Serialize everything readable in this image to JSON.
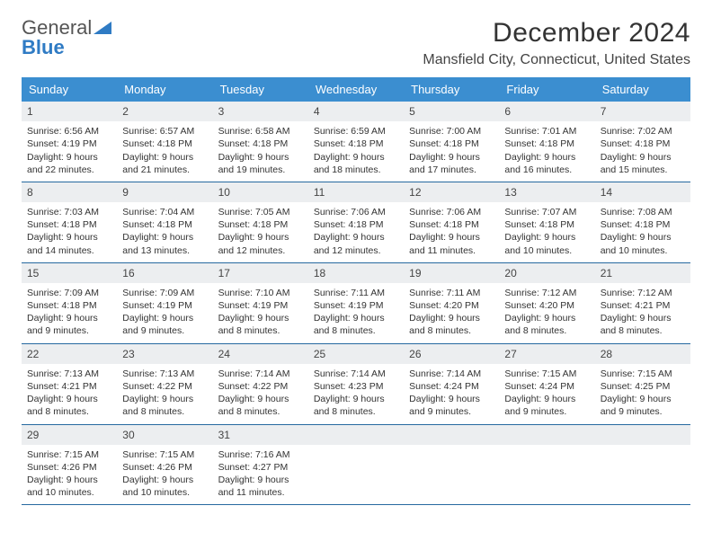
{
  "logo": {
    "text1": "General",
    "text2": "Blue"
  },
  "title": "December 2024",
  "location": "Mansfield City, Connecticut, United States",
  "weekdays": [
    "Sunday",
    "Monday",
    "Tuesday",
    "Wednesday",
    "Thursday",
    "Friday",
    "Saturday"
  ],
  "colors": {
    "header_bg": "#3b8ed0",
    "header_text": "#ffffff",
    "daynum_bg": "#eceef0",
    "week_border": "#2669a0",
    "text": "#333333",
    "logo_blue": "#2f7bc4"
  },
  "days": [
    {
      "n": "1",
      "sunrise": "6:56 AM",
      "sunset": "4:19 PM",
      "dh": "9",
      "dm": "22"
    },
    {
      "n": "2",
      "sunrise": "6:57 AM",
      "sunset": "4:18 PM",
      "dh": "9",
      "dm": "21"
    },
    {
      "n": "3",
      "sunrise": "6:58 AM",
      "sunset": "4:18 PM",
      "dh": "9",
      "dm": "19"
    },
    {
      "n": "4",
      "sunrise": "6:59 AM",
      "sunset": "4:18 PM",
      "dh": "9",
      "dm": "18"
    },
    {
      "n": "5",
      "sunrise": "7:00 AM",
      "sunset": "4:18 PM",
      "dh": "9",
      "dm": "17"
    },
    {
      "n": "6",
      "sunrise": "7:01 AM",
      "sunset": "4:18 PM",
      "dh": "9",
      "dm": "16"
    },
    {
      "n": "7",
      "sunrise": "7:02 AM",
      "sunset": "4:18 PM",
      "dh": "9",
      "dm": "15"
    },
    {
      "n": "8",
      "sunrise": "7:03 AM",
      "sunset": "4:18 PM",
      "dh": "9",
      "dm": "14"
    },
    {
      "n": "9",
      "sunrise": "7:04 AM",
      "sunset": "4:18 PM",
      "dh": "9",
      "dm": "13"
    },
    {
      "n": "10",
      "sunrise": "7:05 AM",
      "sunset": "4:18 PM",
      "dh": "9",
      "dm": "12"
    },
    {
      "n": "11",
      "sunrise": "7:06 AM",
      "sunset": "4:18 PM",
      "dh": "9",
      "dm": "12"
    },
    {
      "n": "12",
      "sunrise": "7:06 AM",
      "sunset": "4:18 PM",
      "dh": "9",
      "dm": "11"
    },
    {
      "n": "13",
      "sunrise": "7:07 AM",
      "sunset": "4:18 PM",
      "dh": "9",
      "dm": "10"
    },
    {
      "n": "14",
      "sunrise": "7:08 AM",
      "sunset": "4:18 PM",
      "dh": "9",
      "dm": "10"
    },
    {
      "n": "15",
      "sunrise": "7:09 AM",
      "sunset": "4:18 PM",
      "dh": "9",
      "dm": "9"
    },
    {
      "n": "16",
      "sunrise": "7:09 AM",
      "sunset": "4:19 PM",
      "dh": "9",
      "dm": "9"
    },
    {
      "n": "17",
      "sunrise": "7:10 AM",
      "sunset": "4:19 PM",
      "dh": "9",
      "dm": "8"
    },
    {
      "n": "18",
      "sunrise": "7:11 AM",
      "sunset": "4:19 PM",
      "dh": "9",
      "dm": "8"
    },
    {
      "n": "19",
      "sunrise": "7:11 AM",
      "sunset": "4:20 PM",
      "dh": "9",
      "dm": "8"
    },
    {
      "n": "20",
      "sunrise": "7:12 AM",
      "sunset": "4:20 PM",
      "dh": "9",
      "dm": "8"
    },
    {
      "n": "21",
      "sunrise": "7:12 AM",
      "sunset": "4:21 PM",
      "dh": "9",
      "dm": "8"
    },
    {
      "n": "22",
      "sunrise": "7:13 AM",
      "sunset": "4:21 PM",
      "dh": "9",
      "dm": "8"
    },
    {
      "n": "23",
      "sunrise": "7:13 AM",
      "sunset": "4:22 PM",
      "dh": "9",
      "dm": "8"
    },
    {
      "n": "24",
      "sunrise": "7:14 AM",
      "sunset": "4:22 PM",
      "dh": "9",
      "dm": "8"
    },
    {
      "n": "25",
      "sunrise": "7:14 AM",
      "sunset": "4:23 PM",
      "dh": "9",
      "dm": "8"
    },
    {
      "n": "26",
      "sunrise": "7:14 AM",
      "sunset": "4:24 PM",
      "dh": "9",
      "dm": "9"
    },
    {
      "n": "27",
      "sunrise": "7:15 AM",
      "sunset": "4:24 PM",
      "dh": "9",
      "dm": "9"
    },
    {
      "n": "28",
      "sunrise": "7:15 AM",
      "sunset": "4:25 PM",
      "dh": "9",
      "dm": "9"
    },
    {
      "n": "29",
      "sunrise": "7:15 AM",
      "sunset": "4:26 PM",
      "dh": "9",
      "dm": "10"
    },
    {
      "n": "30",
      "sunrise": "7:15 AM",
      "sunset": "4:26 PM",
      "dh": "9",
      "dm": "10"
    },
    {
      "n": "31",
      "sunrise": "7:16 AM",
      "sunset": "4:27 PM",
      "dh": "9",
      "dm": "11"
    }
  ]
}
